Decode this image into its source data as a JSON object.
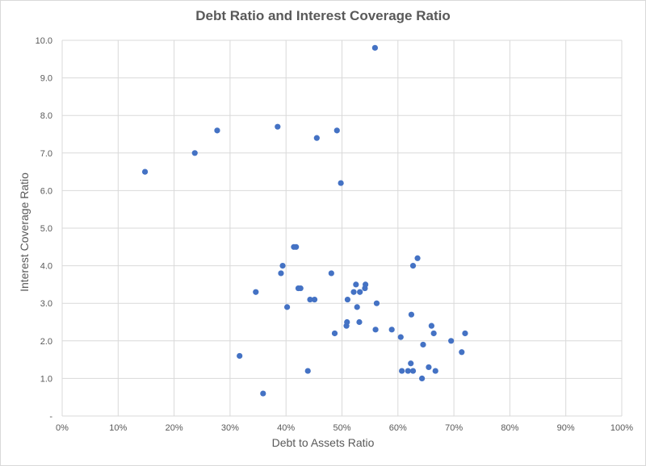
{
  "chart_data": {
    "type": "scatter",
    "title": "Debt Ratio and Interest Coverage Ratio",
    "xlabel": "Debt to Assets Ratio",
    "ylabel": "Interest Coverage Ratio",
    "xlim": [
      0,
      1
    ],
    "ylim": [
      0,
      10
    ],
    "x_ticks": [
      "0%",
      "10%",
      "20%",
      "30%",
      "40%",
      "50%",
      "60%",
      "70%",
      "80%",
      "90%",
      "100%"
    ],
    "y_ticks": [
      "-",
      "1.0",
      "2.0",
      "3.0",
      "4.0",
      "5.0",
      "6.0",
      "7.0",
      "8.0",
      "9.0",
      "10.0"
    ],
    "grid": true,
    "legend": "none",
    "marker_color": "#4472c4",
    "grid_color": "#d9d9d9",
    "points": [
      [
        0.148,
        6.5
      ],
      [
        0.237,
        7.0
      ],
      [
        0.277,
        7.6
      ],
      [
        0.385,
        7.7
      ],
      [
        0.455,
        7.4
      ],
      [
        0.491,
        7.6
      ],
      [
        0.559,
        9.8
      ],
      [
        0.498,
        6.2
      ],
      [
        0.317,
        1.6
      ],
      [
        0.346,
        3.3
      ],
      [
        0.359,
        0.6
      ],
      [
        0.391,
        3.8
      ],
      [
        0.394,
        4.0
      ],
      [
        0.402,
        2.9
      ],
      [
        0.414,
        4.5
      ],
      [
        0.418,
        4.5
      ],
      [
        0.422,
        3.4
      ],
      [
        0.426,
        3.4
      ],
      [
        0.439,
        1.2
      ],
      [
        0.443,
        3.1
      ],
      [
        0.451,
        3.1
      ],
      [
        0.481,
        3.8
      ],
      [
        0.487,
        2.2
      ],
      [
        0.508,
        2.4
      ],
      [
        0.509,
        2.5
      ],
      [
        0.51,
        3.1
      ],
      [
        0.521,
        3.3
      ],
      [
        0.525,
        3.5
      ],
      [
        0.527,
        2.9
      ],
      [
        0.531,
        2.5
      ],
      [
        0.532,
        3.3
      ],
      [
        0.541,
        3.4
      ],
      [
        0.542,
        3.5
      ],
      [
        0.56,
        2.3
      ],
      [
        0.562,
        3.0
      ],
      [
        0.589,
        2.3
      ],
      [
        0.605,
        2.1
      ],
      [
        0.607,
        1.2
      ],
      [
        0.618,
        1.2
      ],
      [
        0.623,
        1.4
      ],
      [
        0.624,
        2.7
      ],
      [
        0.627,
        1.2
      ],
      [
        0.627,
        4.0
      ],
      [
        0.635,
        4.2
      ],
      [
        0.643,
        1.0
      ],
      [
        0.645,
        1.9
      ],
      [
        0.655,
        1.3
      ],
      [
        0.66,
        2.4
      ],
      [
        0.664,
        2.2
      ],
      [
        0.667,
        1.2
      ],
      [
        0.695,
        2.0
      ],
      [
        0.714,
        1.7
      ],
      [
        0.72,
        2.2
      ]
    ]
  }
}
